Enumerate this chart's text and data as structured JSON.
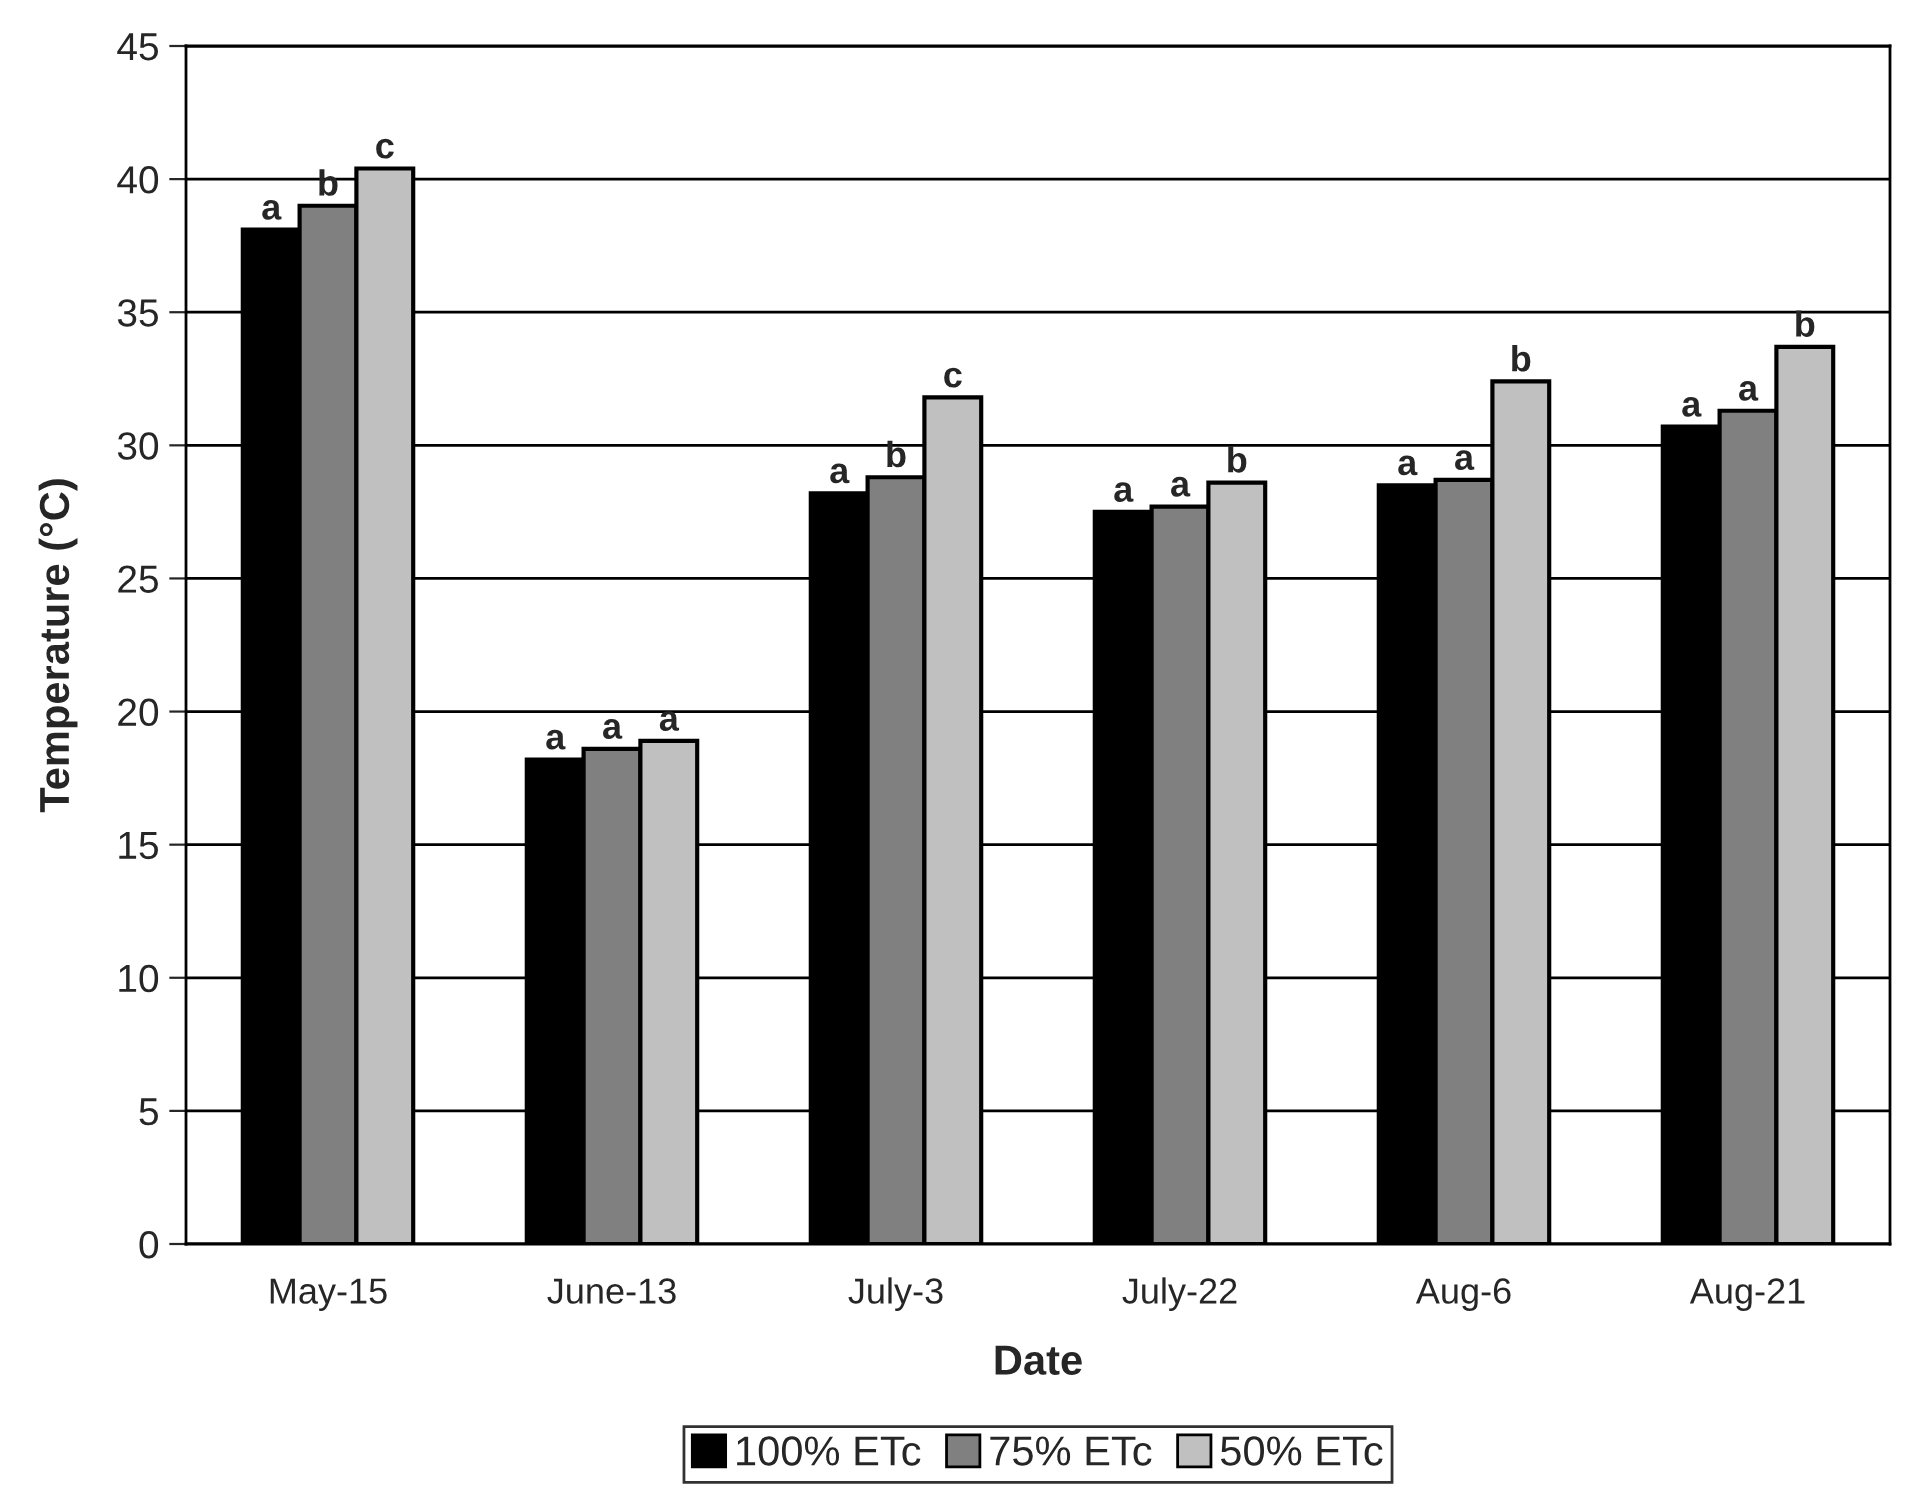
{
  "chart_data": {
    "type": "bar",
    "xlabel": "Date",
    "ylabel": "Temperature (°C)",
    "categories": [
      "May-15",
      "June-13",
      "July-3",
      "July-22",
      "Aug-6",
      "Aug-21"
    ],
    "series": [
      {
        "name": "100% ETc",
        "color": "#000000",
        "values": [
          38.1,
          18.2,
          28.2,
          27.5,
          28.5,
          30.7
        ],
        "value_labels": [
          "a",
          "a",
          "a",
          "a",
          "a",
          "a"
        ]
      },
      {
        "name": "75% ETc",
        "color": "#808080",
        "values": [
          39.0,
          18.6,
          28.8,
          27.7,
          28.7,
          31.3
        ],
        "value_labels": [
          "b",
          "a",
          "b",
          "a",
          "a",
          "a"
        ]
      },
      {
        "name": "50% ETc",
        "color": "#c0c0c0",
        "values": [
          40.4,
          18.9,
          31.8,
          28.6,
          32.4,
          33.7
        ],
        "value_labels": [
          "c",
          "a",
          "c",
          "b",
          "b",
          "b"
        ]
      }
    ],
    "ylim": [
      0,
      45
    ],
    "yticks": [
      0,
      5,
      10,
      15,
      20,
      25,
      30,
      35,
      40,
      45
    ],
    "grid": "y",
    "legend": "bottom"
  }
}
